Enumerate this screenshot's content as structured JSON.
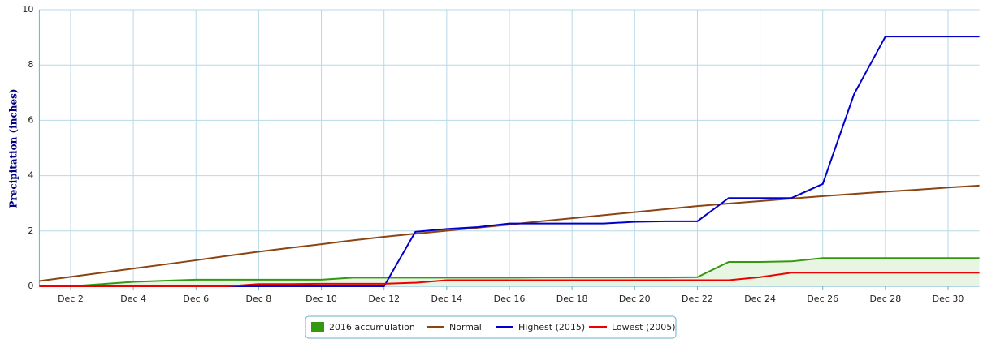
{
  "chart_data": {
    "type": "line",
    "y_label": "Precipitation (inches)",
    "categories": [
      null,
      "Dec 2",
      null,
      "Dec 4",
      null,
      "Dec 6",
      null,
      "Dec 8",
      null,
      "Dec 10",
      null,
      "Dec 12",
      null,
      "Dec 14",
      null,
      "Dec 16",
      null,
      "Dec 18",
      null,
      "Dec 20",
      null,
      "Dec 22",
      null,
      "Dec 24",
      null,
      "Dec 26",
      null,
      "Dec 28",
      null,
      "Dec 30",
      null
    ],
    "ylim": [
      0,
      10
    ],
    "yticks": [
      0,
      2,
      4,
      6,
      8,
      10
    ],
    "grid": true,
    "series": [
      {
        "name": "2016 accumulation",
        "color": "#339911",
        "fill": "#e8f5e2",
        "area": true,
        "values": [
          null,
          0,
          0.08,
          0.16,
          0.2,
          0.24,
          0.24,
          0.24,
          0.24,
          0.24,
          0.31,
          0.31,
          0.31,
          0.31,
          0.31,
          0.31,
          0.32,
          0.32,
          0.32,
          0.32,
          0.32,
          0.33,
          0.88,
          0.88,
          0.9,
          1.02,
          1.02,
          1.02,
          1.02,
          1.02,
          1.02
        ]
      },
      {
        "name": "Normal",
        "color": "#8b4513",
        "values": [
          0.19,
          0.34,
          0.49,
          0.64,
          0.79,
          0.94,
          1.1,
          1.25,
          1.39,
          1.52,
          1.66,
          1.79,
          1.9,
          2.01,
          2.12,
          2.23,
          2.35,
          2.46,
          2.57,
          2.68,
          2.79,
          2.9,
          2.99,
          3.08,
          3.17,
          3.26,
          3.34,
          3.42,
          3.49,
          3.57,
          3.64
        ]
      },
      {
        "name": "Highest (2015)",
        "color": "#0000cc",
        "values": [
          0,
          0,
          0,
          0,
          0,
          0,
          0,
          0,
          0,
          0,
          0,
          0,
          1.97,
          2.07,
          2.14,
          2.27,
          2.27,
          2.27,
          2.27,
          2.33,
          2.35,
          2.35,
          3.19,
          3.19,
          3.19,
          3.7,
          6.95,
          9.03,
          9.03,
          9.03,
          9.03
        ]
      },
      {
        "name": "Lowest (2005)",
        "color": "#ee0000",
        "values": [
          0,
          0,
          0,
          0,
          0,
          0,
          0,
          0.08,
          0.08,
          0.09,
          0.09,
          0.09,
          0.13,
          0.22,
          0.22,
          0.22,
          0.22,
          0.22,
          0.22,
          0.22,
          0.22,
          0.22,
          0.22,
          0.33,
          0.49,
          0.49,
          0.49,
          0.49,
          0.49,
          0.49,
          0.49
        ]
      }
    ]
  }
}
